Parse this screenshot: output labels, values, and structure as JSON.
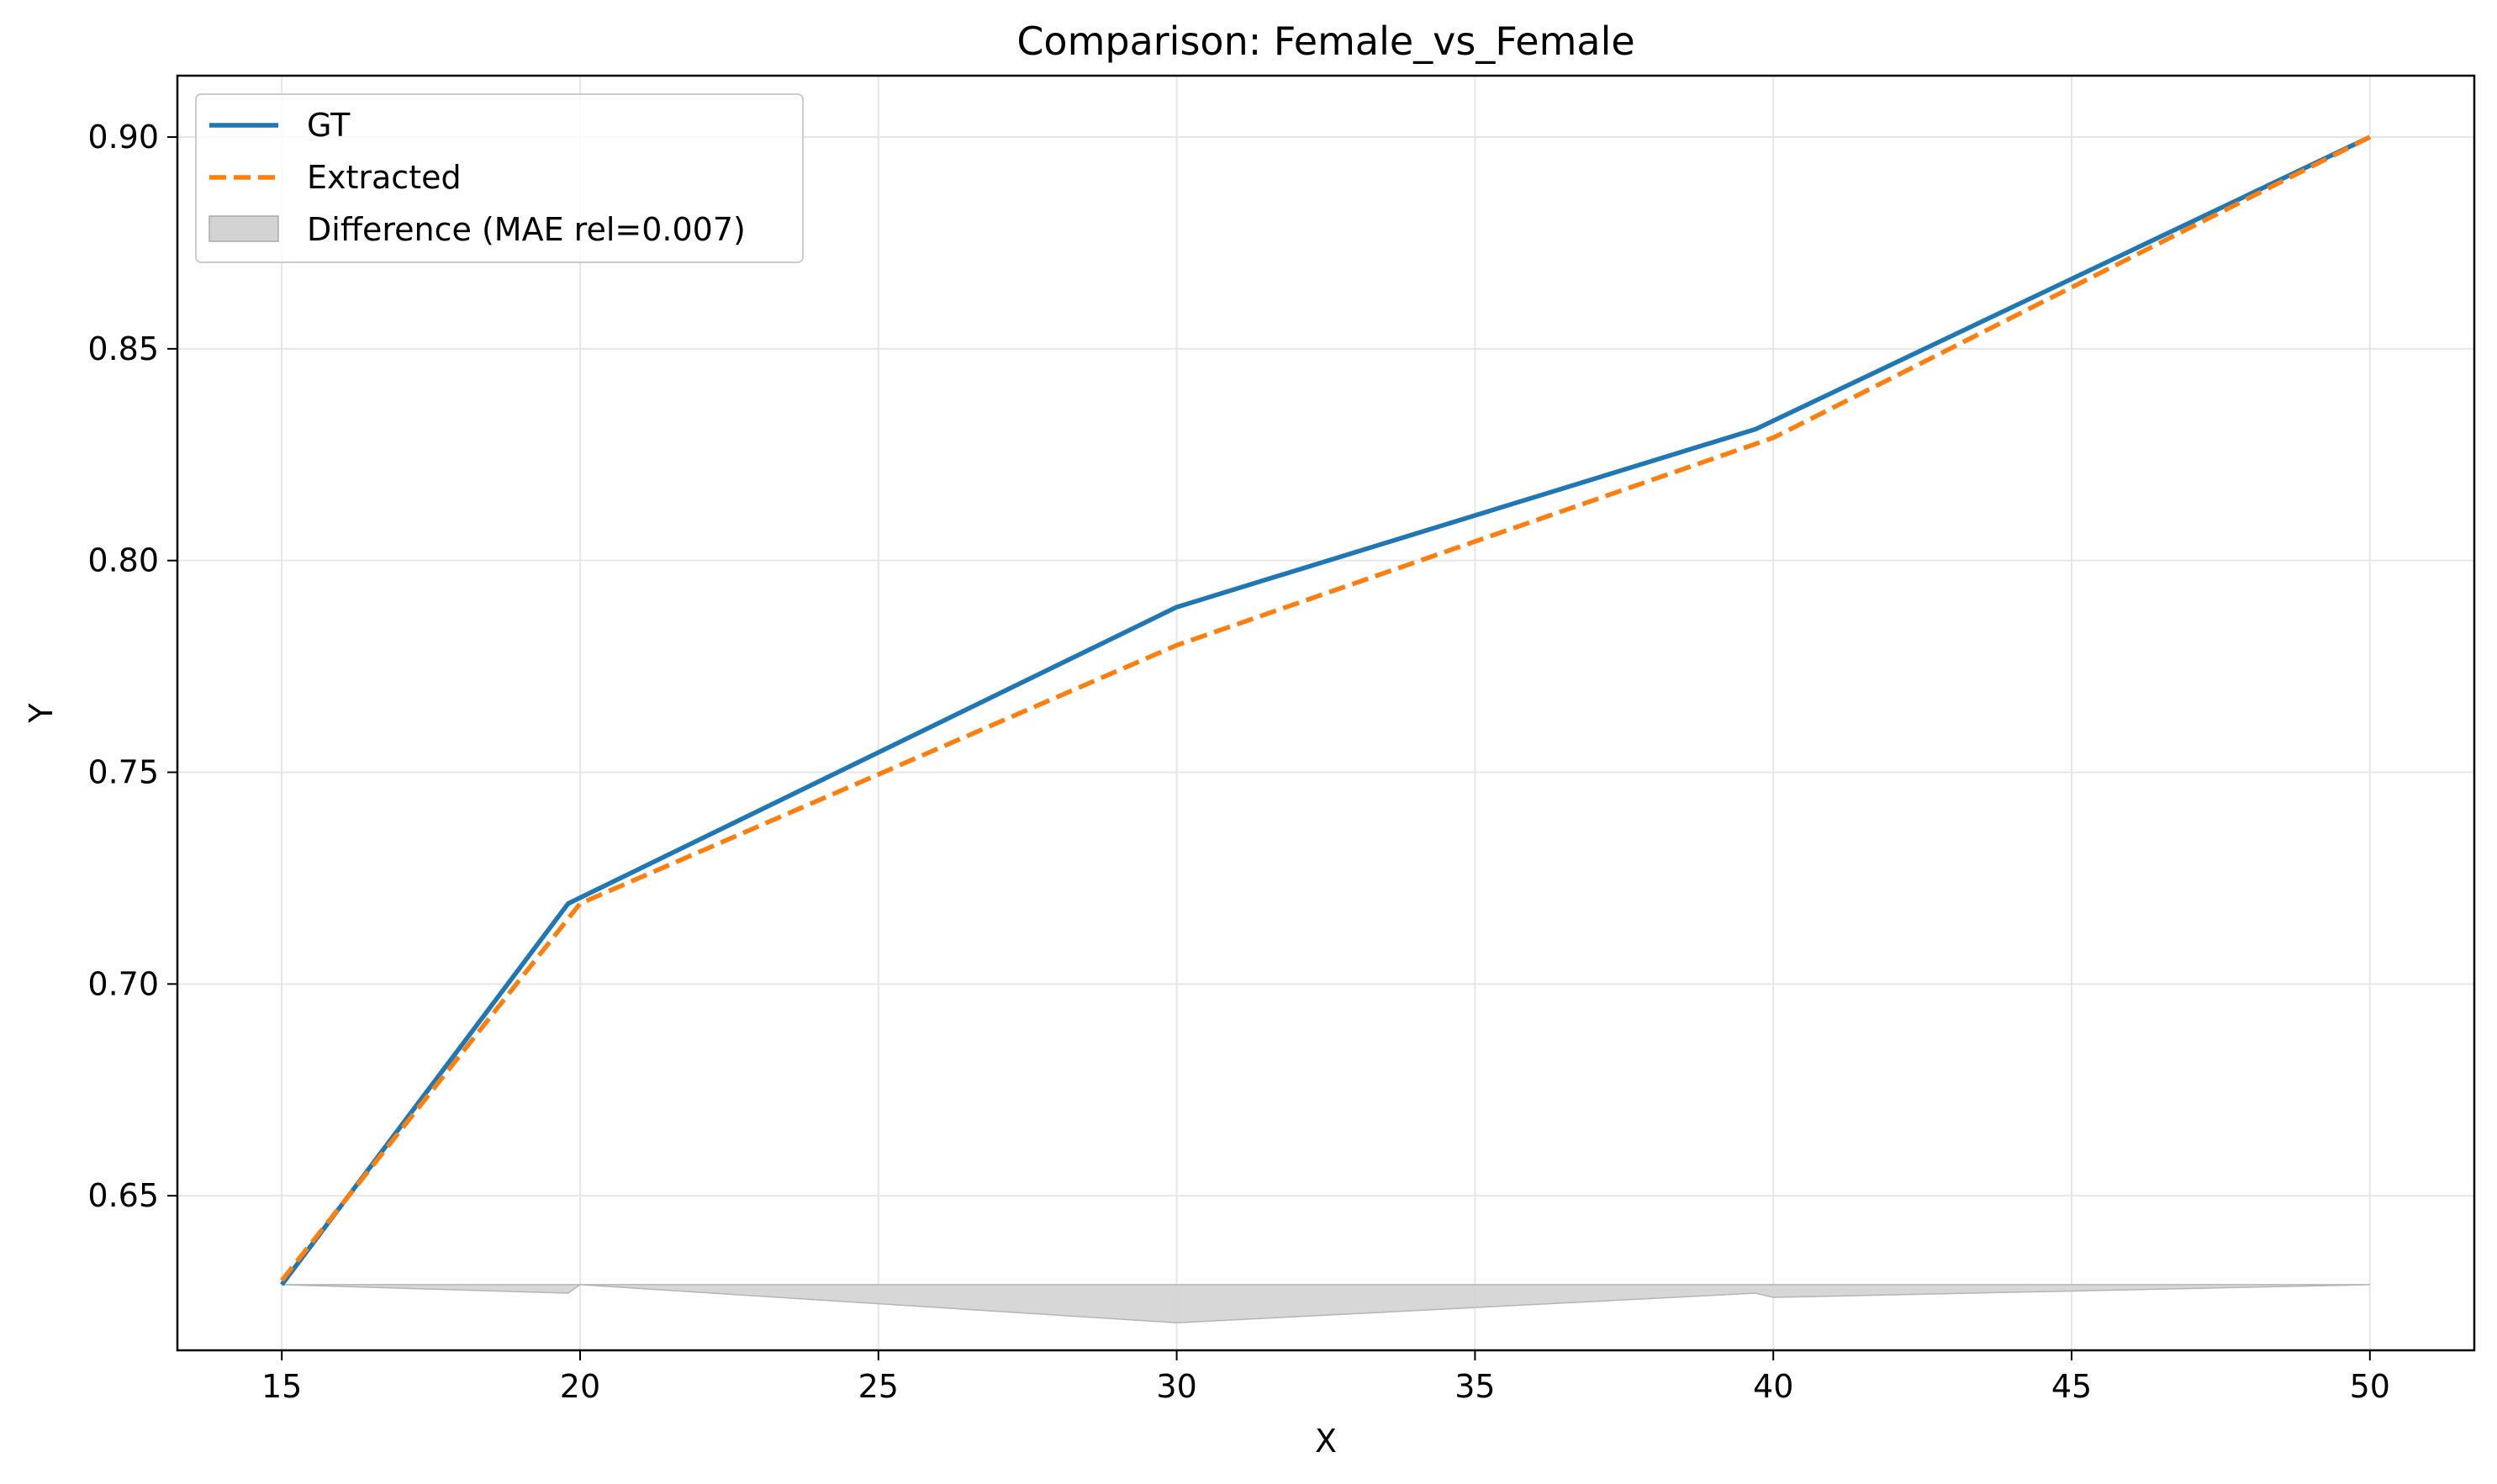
{
  "chart_data": {
    "type": "line",
    "title": "Comparison: Female_vs_Female",
    "xlabel": "X",
    "ylabel": "Y",
    "xlim": [
      13.25,
      51.75
    ],
    "ylim": [
      0.6135,
      0.9145
    ],
    "xticks": [
      15,
      20,
      25,
      30,
      35,
      40,
      45,
      50
    ],
    "xtick_labels": [
      "15",
      "20",
      "25",
      "30",
      "35",
      "40",
      "45",
      "50"
    ],
    "yticks": [
      0.65,
      0.7,
      0.75,
      0.8,
      0.85,
      0.9
    ],
    "ytick_labels": [
      "0.65",
      "0.70",
      "0.75",
      "0.80",
      "0.85",
      "0.90"
    ],
    "grid": true,
    "legend_position": "upper left",
    "series": [
      {
        "name": "GT",
        "style": "solid",
        "color": "#1f77b4",
        "x": [
          15,
          19.8,
          30,
          39.7,
          50
        ],
        "y": [
          0.629,
          0.719,
          0.789,
          0.831,
          0.9
        ]
      },
      {
        "name": "Extracted",
        "style": "dashed",
        "color": "#ff7f0e",
        "x": [
          15,
          20,
          30,
          40,
          50
        ],
        "y": [
          0.63,
          0.719,
          0.78,
          0.829,
          0.9
        ]
      }
    ],
    "difference_band": {
      "name": "Difference (MAE rel=0.007)",
      "color": "#d3d3d3",
      "x": [
        15,
        19.8,
        20,
        30,
        39.7,
        40,
        50
      ],
      "baseline": 0.629,
      "y": [
        0.629,
        0.627,
        0.629,
        0.62,
        0.627,
        0.626,
        0.629
      ]
    }
  }
}
